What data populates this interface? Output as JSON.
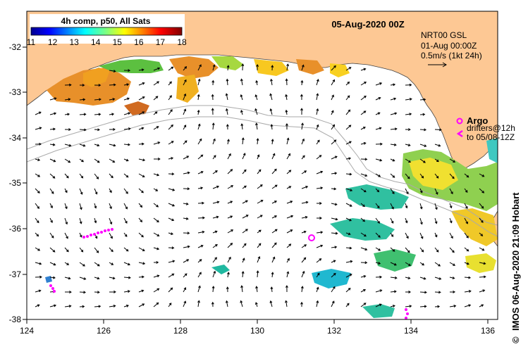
{
  "map": {
    "date_title": "05-Aug-2020 00Z",
    "lon_ticks": [
      "124",
      "126",
      "128",
      "130",
      "132",
      "134",
      "136"
    ],
    "lat_ticks": [
      "-32",
      "-33",
      "-34",
      "-35",
      "-36",
      "-37",
      "-38"
    ]
  },
  "colorbar": {
    "title": "4h comp, p50, All Sats",
    "labels": [
      "11",
      "12",
      "13",
      "14",
      "15",
      "16",
      "17",
      "18"
    ]
  },
  "currents": {
    "source_label": "NRT00 GSL",
    "time_label": "01-Aug 00:00Z",
    "scale_label": "0.5m/s (1kt 24h)"
  },
  "argo": {
    "label": "Argo",
    "drifters_line1": "drifters@12h",
    "drifters_line2": "to 05/08-12Z"
  },
  "credit": {
    "copyright_symbol": "©",
    "text": "IMOS 06-Aug-2020 21:09 Hobart"
  },
  "colors": {
    "land": "#fdc894",
    "ocean": "#ffffff",
    "argo": "#ff00ff"
  }
}
